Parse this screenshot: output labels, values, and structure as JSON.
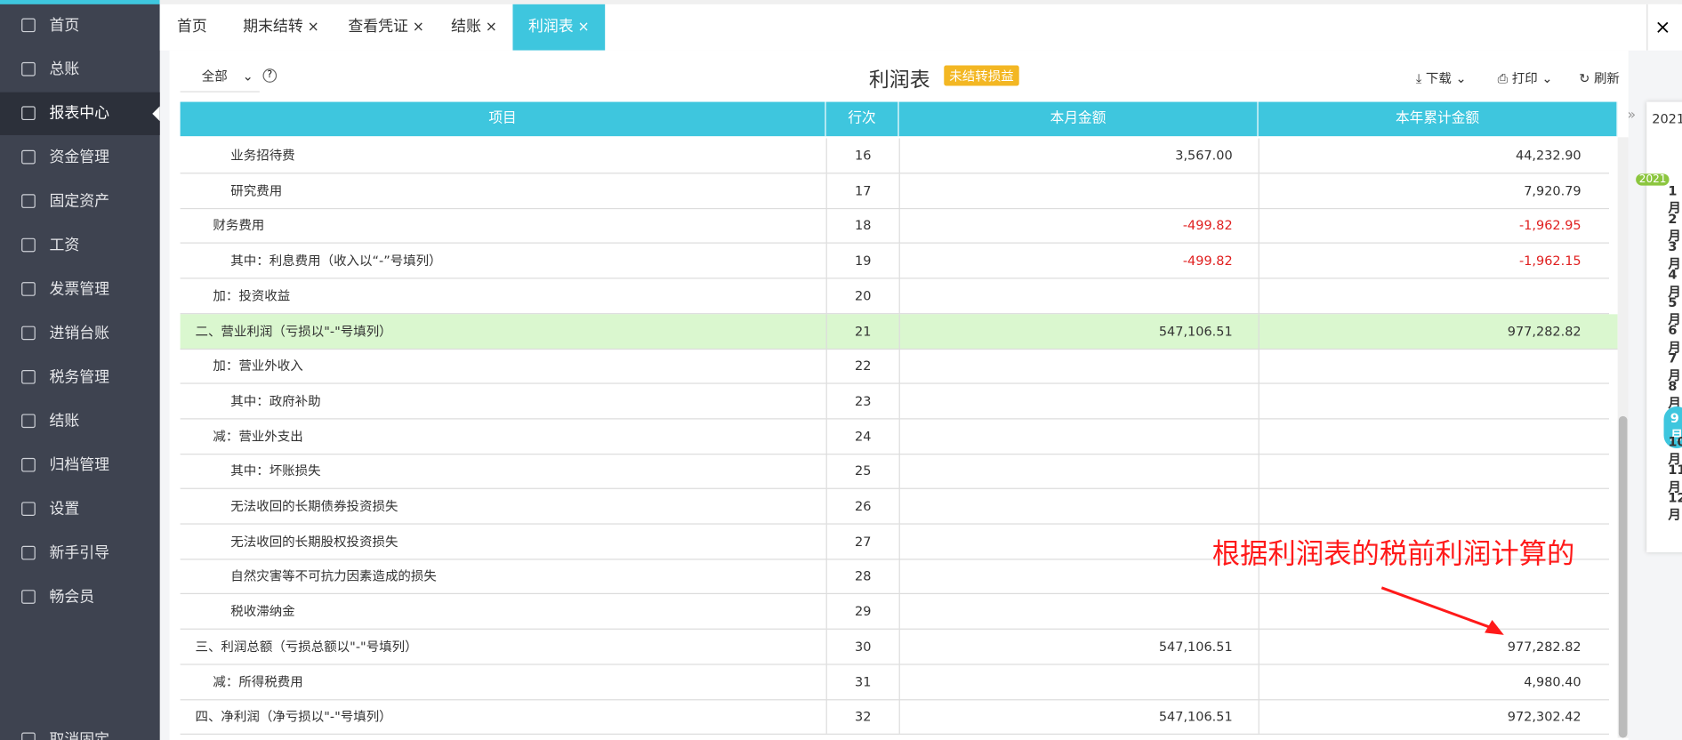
{
  "sidebar": [
    "首页",
    "总账",
    "报表中心",
    "资金管理",
    "固定资产",
    "工资",
    "发票管理",
    "进销台账",
    "税务管理",
    "结账",
    "归档管理",
    "设置",
    "新手引导",
    "畅会员",
    "取消固定"
  ],
  "tabs": [
    "首页",
    "期末结转",
    "查看凭证",
    "结账",
    "利润表"
  ],
  "toolbar": {
    "filter": "全部",
    "title": "利润表",
    "badge": "未结转损益",
    "download": "下载",
    "print": "打印",
    "refresh": "刷新"
  },
  "table": {
    "header": [
      "项目",
      "行次",
      "本月金额",
      "本年累计金额"
    ],
    "rows": [
      [
        "业务招待费",
        "16",
        "3,567.00",
        "44,232.90"
      ],
      [
        "研究费用",
        "17",
        "",
        "7,920.79"
      ],
      [
        "财务费用",
        "18",
        "-499.82",
        "-1,962.95"
      ],
      [
        "其中：利息费用（收入以“-”号填列）",
        "19",
        "-499.82",
        "-1,962.15"
      ],
      [
        "加：投资收益",
        "20",
        "",
        ""
      ],
      [
        "二、营业利润（亏损以\"-\"号填列）",
        "21",
        "547,106.51",
        "977,282.82"
      ],
      [
        "加：营业外收入",
        "22",
        "",
        ""
      ],
      [
        "其中：政府补助",
        "23",
        "",
        ""
      ],
      [
        "减：营业外支出",
        "24",
        "",
        ""
      ],
      [
        "其中：坏账损失",
        "25",
        "",
        ""
      ],
      [
        "无法收回的长期债券投资损失",
        "26",
        "",
        ""
      ],
      [
        "无法收回的长期股权投资损失",
        "27",
        "",
        ""
      ],
      [
        "自然灾害等不可抗力因素造成的损失",
        "28",
        "",
        ""
      ],
      [
        "税收滞纳金",
        "29",
        "",
        ""
      ],
      [
        "三、利润总额（亏损总额以\"-\"号填列）",
        "30",
        "547,106.51",
        "977,282.82"
      ],
      [
        "减：所得税费用",
        "31",
        "",
        "4,980.40"
      ],
      [
        "四、净利润（净亏损以\"-\"号填列）",
        "32",
        "547,106.51",
        "972,302.42"
      ]
    ]
  },
  "period": {
    "year": "2021",
    "badge": "2021",
    "months": [
      "1月",
      "2月",
      "3月",
      "4月",
      "5月",
      "6月",
      "7月",
      "8月",
      "9月",
      "10月",
      "11月",
      "12月"
    ]
  },
  "annotation": "根据利润表的税前利润计算的"
}
